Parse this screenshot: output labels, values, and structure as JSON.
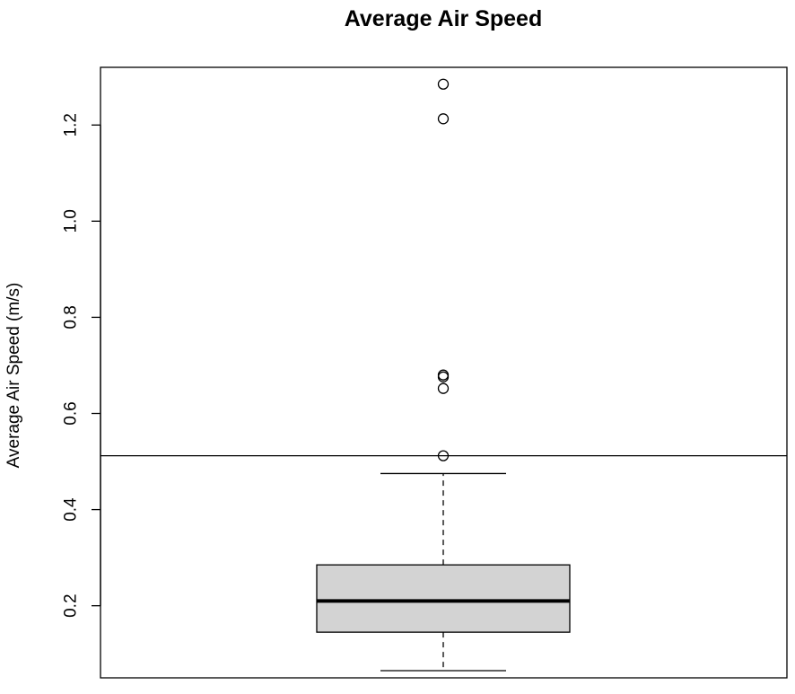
{
  "chart_data": {
    "type": "boxplot",
    "title": "Average Air Speed",
    "xlabel": "",
    "ylabel": "Average Air Speed (m/s)",
    "ylim": [
      0.05,
      1.32
    ],
    "yticks": [
      0.2,
      0.4,
      0.6,
      0.8,
      1.0,
      1.2
    ],
    "ytick_labels": [
      "0.2",
      "0.4",
      "0.6",
      "0.8",
      "1.0",
      "1.2"
    ],
    "box": {
      "whisker_low": 0.065,
      "q1": 0.145,
      "median": 0.21,
      "q3": 0.285,
      "whisker_high": 0.475
    },
    "outliers": [
      0.512,
      0.652,
      0.676,
      0.68,
      1.213,
      1.285
    ],
    "reference_line": 0.512,
    "box_fill": "#d3d3d3",
    "line_color": "#000000",
    "grid": false,
    "legend": "none"
  }
}
